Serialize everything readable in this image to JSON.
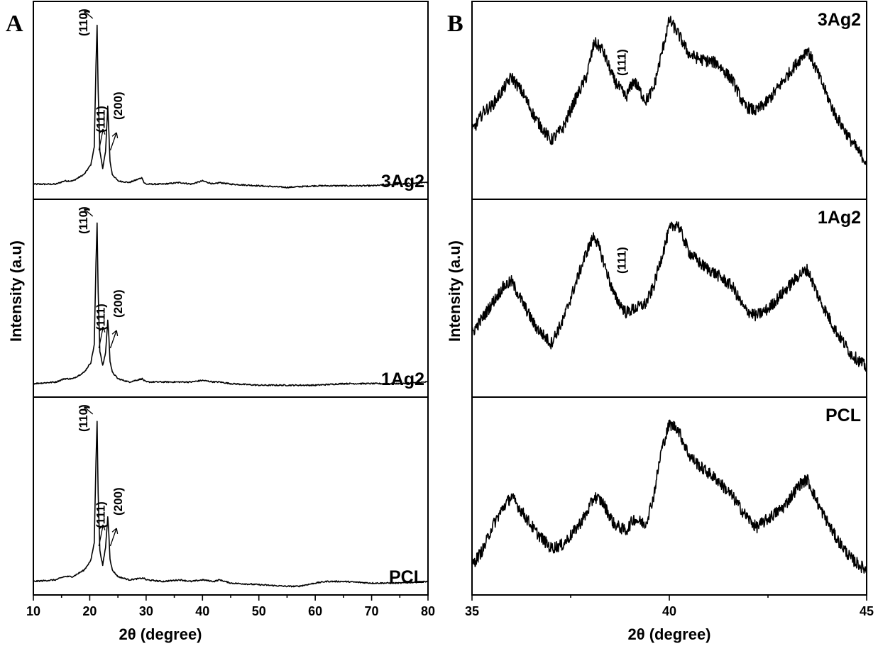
{
  "chart_data": [
    {
      "panel": "A",
      "type": "line",
      "xlabel": "2θ (degree)",
      "ylabel": "Intensity (a.u)",
      "xlim": [
        10,
        80
      ],
      "x_ticks": [
        "10",
        "20",
        "30",
        "40",
        "50",
        "60",
        "70",
        "80"
      ],
      "layout": "three stacked sub-panels sharing the x axis",
      "subpanels": [
        {
          "label": "3Ag2",
          "series": [
            {
              "x": [
                10,
                14,
                15.5,
                17,
                19,
                20.2,
                20.8,
                21.1,
                21.3,
                21.5,
                21.8,
                22.3,
                22.8,
                23.2,
                23.4,
                23.6,
                24,
                25,
                27,
                29.3,
                29.6,
                30,
                33,
                36,
                38,
                40,
                42,
                43,
                45,
                50,
                55,
                60,
                65,
                70,
                75,
                80
              ],
              "y": [
                0.02,
                0.02,
                0.04,
                0.04,
                0.08,
                0.14,
                0.25,
                0.75,
                1.0,
                0.6,
                0.22,
                0.12,
                0.22,
                0.5,
                0.34,
                0.16,
                0.08,
                0.04,
                0.03,
                0.06,
                0.03,
                0.02,
                0.02,
                0.03,
                0.02,
                0.04,
                0.02,
                0.03,
                0.02,
                0.01,
                0.0,
                0.01,
                0.01,
                0.01,
                0.02,
                0.03
              ]
            }
          ],
          "peak_labels": [
            "(110)",
            "(111)",
            "(200)"
          ]
        },
        {
          "label": "1Ag2",
          "series": [
            {
              "x": [
                10,
                14,
                15.5,
                17,
                19,
                20.2,
                20.8,
                21.1,
                21.3,
                21.5,
                21.8,
                22.3,
                22.8,
                23.2,
                23.4,
                23.6,
                24,
                25,
                27,
                29.3,
                29.6,
                30,
                33,
                36,
                38,
                40,
                42,
                43,
                45,
                50,
                55,
                60,
                65,
                70,
                75,
                80
              ],
              "y": [
                0.01,
                0.02,
                0.04,
                0.04,
                0.08,
                0.14,
                0.25,
                0.75,
                1.0,
                0.58,
                0.21,
                0.12,
                0.2,
                0.4,
                0.3,
                0.15,
                0.08,
                0.04,
                0.02,
                0.04,
                0.03,
                0.02,
                0.02,
                0.02,
                0.02,
                0.03,
                0.02,
                0.02,
                0.01,
                0.0,
                0.0,
                0.0,
                0.01,
                0.01,
                0.01,
                0.02
              ]
            }
          ],
          "peak_labels": [
            "(110)",
            "(111)",
            "(200)"
          ]
        },
        {
          "label": "PCL",
          "series": [
            {
              "x": [
                10,
                14,
                15.5,
                17,
                19,
                20.2,
                20.8,
                21.1,
                21.3,
                21.5,
                21.8,
                22.3,
                22.8,
                23.2,
                23.4,
                23.6,
                24,
                25,
                27,
                29.3,
                29.6,
                30,
                33,
                36,
                38,
                40,
                42,
                43,
                45,
                50,
                55,
                57,
                60,
                62,
                65,
                70,
                75,
                80
              ],
              "y": [
                0.01,
                0.02,
                0.04,
                0.04,
                0.08,
                0.14,
                0.25,
                0.75,
                1.0,
                0.55,
                0.2,
                0.11,
                0.22,
                0.41,
                0.3,
                0.15,
                0.08,
                0.04,
                0.02,
                0.03,
                0.03,
                0.02,
                0.01,
                0.02,
                0.01,
                0.02,
                0.01,
                0.02,
                0.0,
                -0.01,
                -0.02,
                -0.02,
                0.0,
                0.01,
                0.01,
                0.0,
                0.0,
                0.01
              ]
            }
          ],
          "peak_labels": [
            "(110)",
            "(111)",
            "(200)"
          ]
        }
      ]
    },
    {
      "panel": "B",
      "type": "line",
      "xlabel": "2θ (degree)",
      "ylabel": "Intensity (a.u)",
      "xlim": [
        35,
        45
      ],
      "x_ticks": [
        "35",
        "40",
        "45"
      ],
      "layout": "three stacked sub-panels sharing the x axis",
      "subpanels": [
        {
          "label": "3Ag2",
          "series": [
            {
              "x": [
                35,
                35.3,
                35.5,
                35.8,
                36.0,
                36.3,
                36.6,
                37.0,
                37.3,
                37.6,
                37.9,
                38.1,
                38.3,
                38.6,
                38.9,
                39.1,
                39.4,
                39.6,
                39.8,
                40.0,
                40.2,
                40.5,
                40.8,
                41.2,
                41.6,
                41.9,
                42.2,
                42.5,
                42.9,
                43.3,
                43.5,
                43.8,
                44.2,
                44.6,
                45.0
              ],
              "y": [
                0.3,
                0.42,
                0.45,
                0.55,
                0.62,
                0.52,
                0.38,
                0.25,
                0.32,
                0.48,
                0.62,
                0.82,
                0.78,
                0.6,
                0.5,
                0.6,
                0.48,
                0.55,
                0.75,
                0.95,
                0.88,
                0.75,
                0.72,
                0.7,
                0.6,
                0.45,
                0.42,
                0.48,
                0.6,
                0.72,
                0.78,
                0.62,
                0.4,
                0.25,
                0.12
              ]
            }
          ],
          "peak_labels": [
            "(111)"
          ]
        },
        {
          "label": "1Ag2",
          "series": [
            {
              "x": [
                35,
                35.3,
                35.5,
                35.8,
                36.0,
                36.3,
                36.6,
                37.0,
                37.3,
                37.6,
                37.9,
                38.1,
                38.3,
                38.6,
                38.9,
                39.1,
                39.4,
                39.6,
                39.8,
                40.0,
                40.2,
                40.5,
                40.8,
                41.2,
                41.6,
                41.9,
                42.2,
                42.5,
                42.9,
                43.3,
                43.5,
                43.8,
                44.2,
                44.6,
                45.0
              ],
              "y": [
                0.28,
                0.38,
                0.45,
                0.55,
                0.58,
                0.45,
                0.32,
                0.22,
                0.35,
                0.55,
                0.75,
                0.85,
                0.72,
                0.5,
                0.4,
                0.42,
                0.45,
                0.55,
                0.72,
                0.88,
                0.92,
                0.75,
                0.68,
                0.62,
                0.55,
                0.42,
                0.38,
                0.42,
                0.52,
                0.62,
                0.65,
                0.48,
                0.3,
                0.16,
                0.08
              ]
            }
          ],
          "peak_labels": [
            "(111)"
          ]
        },
        {
          "label": "PCL",
          "series": [
            {
              "x": [
                35,
                35.3,
                35.5,
                35.8,
                36.0,
                36.3,
                36.6,
                37.0,
                37.3,
                37.6,
                37.9,
                38.1,
                38.3,
                38.6,
                38.9,
                39.1,
                39.4,
                39.6,
                39.8,
                40.0,
                40.2,
                40.5,
                40.8,
                41.2,
                41.6,
                41.9,
                42.2,
                42.5,
                42.9,
                43.3,
                43.5,
                43.8,
                44.2,
                44.6,
                45.0
              ],
              "y": [
                0.08,
                0.18,
                0.3,
                0.42,
                0.48,
                0.38,
                0.28,
                0.18,
                0.2,
                0.28,
                0.38,
                0.48,
                0.45,
                0.32,
                0.28,
                0.35,
                0.32,
                0.48,
                0.75,
                0.9,
                0.88,
                0.72,
                0.65,
                0.58,
                0.48,
                0.38,
                0.3,
                0.35,
                0.42,
                0.55,
                0.58,
                0.42,
                0.25,
                0.12,
                0.05
              ]
            }
          ],
          "peak_labels": []
        }
      ]
    }
  ],
  "panel_letters": [
    "A",
    "B"
  ]
}
